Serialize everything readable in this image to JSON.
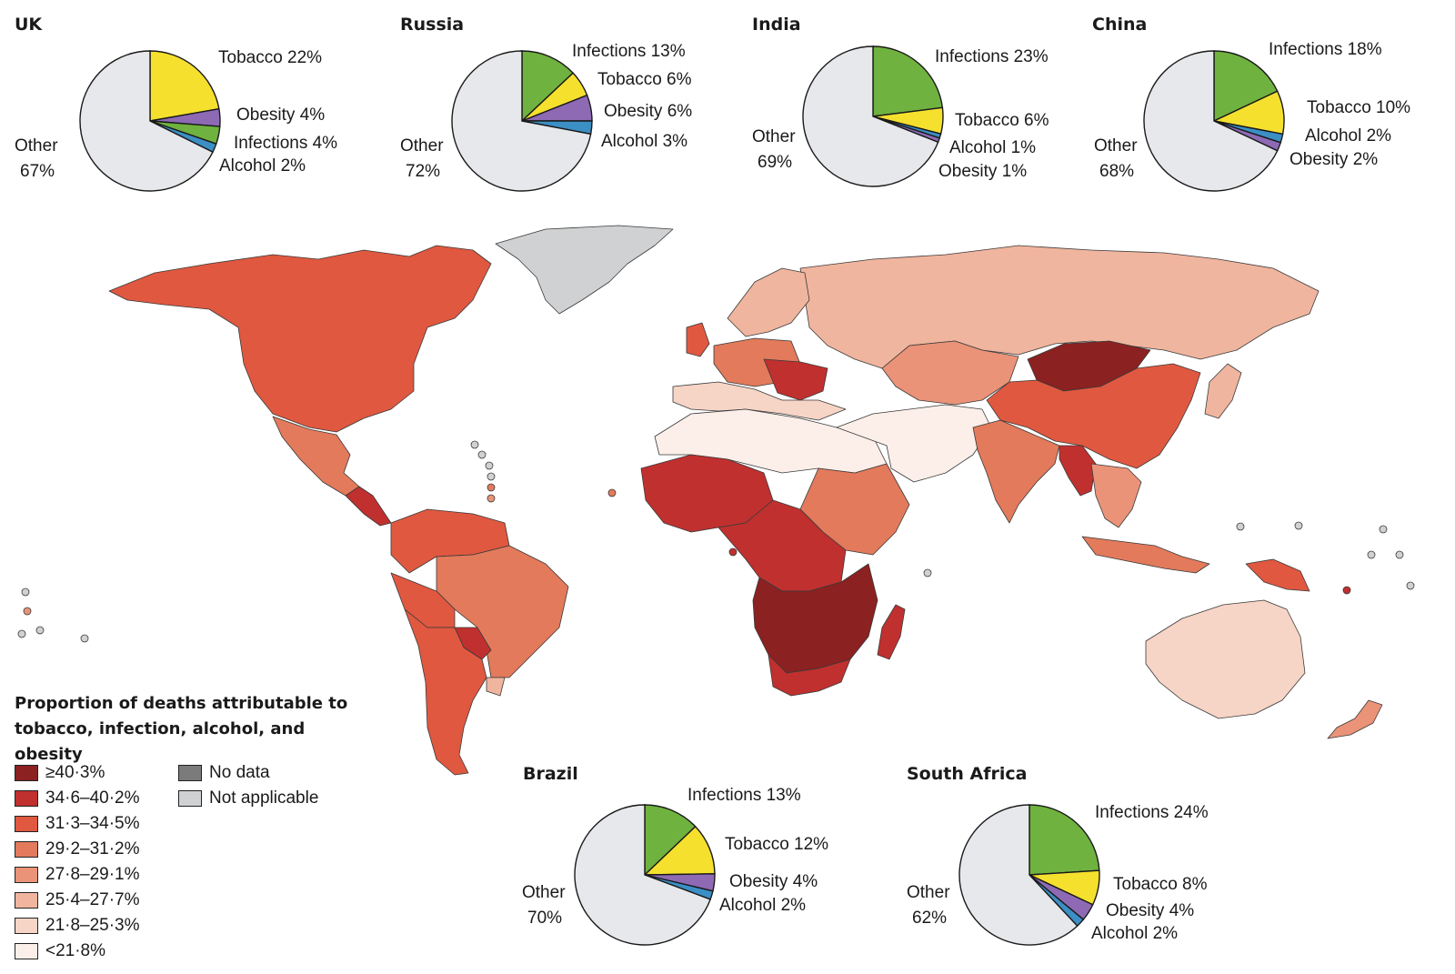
{
  "pies": [
    {
      "id": "uk",
      "country": "UK",
      "slices": [
        {
          "name": "Tobacco",
          "value": 22,
          "label": "Tobacco 22%",
          "color": "#f5e02e"
        },
        {
          "name": "Obesity",
          "value": 4,
          "label": "Obesity 4%",
          "color": "#8e6ab5"
        },
        {
          "name": "Infections",
          "value": 4,
          "label": "Infections 4%",
          "color": "#6fb23f"
        },
        {
          "name": "Alcohol",
          "value": 2,
          "label": "Alcohol 2%",
          "color": "#3b8fc5"
        },
        {
          "name": "Other",
          "value": 67,
          "label": "Other 67%",
          "color": "#e6e8eb"
        }
      ]
    },
    {
      "id": "russia",
      "country": "Russia",
      "slices": [
        {
          "name": "Infections",
          "value": 13,
          "label": "Infections 13%",
          "color": "#6fb23f"
        },
        {
          "name": "Tobacco",
          "value": 6,
          "label": "Tobacco 6%",
          "color": "#f5e02e"
        },
        {
          "name": "Obesity",
          "value": 6,
          "label": "Obesity 6%",
          "color": "#8e6ab5"
        },
        {
          "name": "Alcohol",
          "value": 3,
          "label": "Alcohol 3%",
          "color": "#3b8fc5"
        },
        {
          "name": "Other",
          "value": 72,
          "label": "Other 72%",
          "color": "#e6e8eb"
        }
      ]
    },
    {
      "id": "india",
      "country": "India",
      "slices": [
        {
          "name": "Infections",
          "value": 23,
          "label": "Infections 23%",
          "color": "#6fb23f"
        },
        {
          "name": "Tobacco",
          "value": 6,
          "label": "Tobacco 6%",
          "color": "#f5e02e"
        },
        {
          "name": "Alcohol",
          "value": 1,
          "label": "Alcohol 1%",
          "color": "#3b8fc5"
        },
        {
          "name": "Obesity",
          "value": 1,
          "label": "Obesity 1%",
          "color": "#8e6ab5"
        },
        {
          "name": "Other",
          "value": 69,
          "label": "Other 69%",
          "color": "#e6e8eb"
        }
      ]
    },
    {
      "id": "china",
      "country": "China",
      "slices": [
        {
          "name": "Infections",
          "value": 18,
          "label": "Infections 18%",
          "color": "#6fb23f"
        },
        {
          "name": "Tobacco",
          "value": 10,
          "label": "Tobacco 10%",
          "color": "#f5e02e"
        },
        {
          "name": "Alcohol",
          "value": 2,
          "label": "Alcohol 2%",
          "color": "#3b8fc5"
        },
        {
          "name": "Obesity",
          "value": 2,
          "label": "Obesity 2%",
          "color": "#8e6ab5"
        },
        {
          "name": "Other",
          "value": 68,
          "label": "Other 68%",
          "color": "#e6e8eb"
        }
      ]
    },
    {
      "id": "brazil",
      "country": "Brazil",
      "slices": [
        {
          "name": "Infections",
          "value": 13,
          "label": "Infections 13%",
          "color": "#6fb23f"
        },
        {
          "name": "Tobacco",
          "value": 12,
          "label": "Tobacco 12%",
          "color": "#f5e02e"
        },
        {
          "name": "Obesity",
          "value": 4,
          "label": "Obesity 4%",
          "color": "#8e6ab5"
        },
        {
          "name": "Alcohol",
          "value": 2,
          "label": "Alcohol 2%",
          "color": "#3b8fc5"
        },
        {
          "name": "Other",
          "value": 70,
          "label": "Other 70%",
          "color": "#e6e8eb"
        }
      ]
    },
    {
      "id": "south-africa",
      "country": "South Africa",
      "slices": [
        {
          "name": "Infections",
          "value": 24,
          "label": "Infections 24%",
          "color": "#6fb23f"
        },
        {
          "name": "Tobacco",
          "value": 8,
          "label": "Tobacco 8%",
          "color": "#f5e02e"
        },
        {
          "name": "Obesity",
          "value": 4,
          "label": "Obesity 4%",
          "color": "#8e6ab5"
        },
        {
          "name": "Alcohol",
          "value": 2,
          "label": "Alcohol 2%",
          "color": "#3b8fc5"
        },
        {
          "name": "Other",
          "value": 62,
          "label": "Other 62%",
          "color": "#e6e8eb"
        }
      ]
    }
  ],
  "legend": {
    "title": "Proportion of deaths attributable to tobacco, infection, alcohol, and obesity",
    "bins": [
      {
        "label": "≥40·3%",
        "color": "#8b2121"
      },
      {
        "label": "34·6–40·2%",
        "color": "#c0302f"
      },
      {
        "label": "31·3–34·5%",
        "color": "#e05840"
      },
      {
        "label": "29·2–31·2%",
        "color": "#e27a5b"
      },
      {
        "label": "27·8–29·1%",
        "color": "#ea9378"
      },
      {
        "label": "25·4–27·7%",
        "color": "#f0b59e"
      },
      {
        "label": "21·8–25·3%",
        "color": "#f6d4c6"
      },
      {
        "label": "<21·8%",
        "color": "#fcefe9"
      }
    ],
    "extras": [
      {
        "label": "No data",
        "color": "#7b7b7b"
      },
      {
        "label": "Not applicable",
        "color": "#cfd1d2"
      }
    ]
  },
  "map_regions": {
    "north-america": "31·3–34·5%",
    "greenland": "Not applicable",
    "mexico": "29·2–31·2%",
    "central-america": "34·6–40·2%",
    "south-america-north": "31·3–34·5%",
    "brazil": "29·2–31·2%",
    "bolivia": "31·3–34·5%",
    "paraguay": "34·6–40·2%",
    "argentina-chile": "31·3–34·5%",
    "uruguay": "25·4–27·7%",
    "russia": "25·4–27·7%",
    "northern-europe": "25·4–27·7%",
    "western-europe": "29·2–31·2%",
    "uk": "31·3–34·5%",
    "southern-europe": "21·8–25·3%",
    "eastern-europe": "34·6–40·2%",
    "north-africa": "<21·8%",
    "west-africa": "34·6–40·2%",
    "central-africa": "34·6–40·2%",
    "east-africa": "29·2–31·2%",
    "southern-africa-inland": "≥40·3%",
    "south-africa": "34·6–40·2%",
    "madagascar": "34·6–40·2%",
    "middle-east": "<21·8%",
    "central-asia": "27·8–29·1%",
    "mongolia": "≥40·3%",
    "china": "31·3–34·5%",
    "south-asia": "29·2–31·2%",
    "myanmar": "34·6–40·2%",
    "southeast-asia": "27·8–29·1%",
    "indonesia": "29·2–31·2%",
    "papua-new-guinea": "31·3–34·5%",
    "japan": "25·4–27·7%",
    "australia": "21·8–25·3%",
    "new-zealand": "27·8–29·1%"
  }
}
